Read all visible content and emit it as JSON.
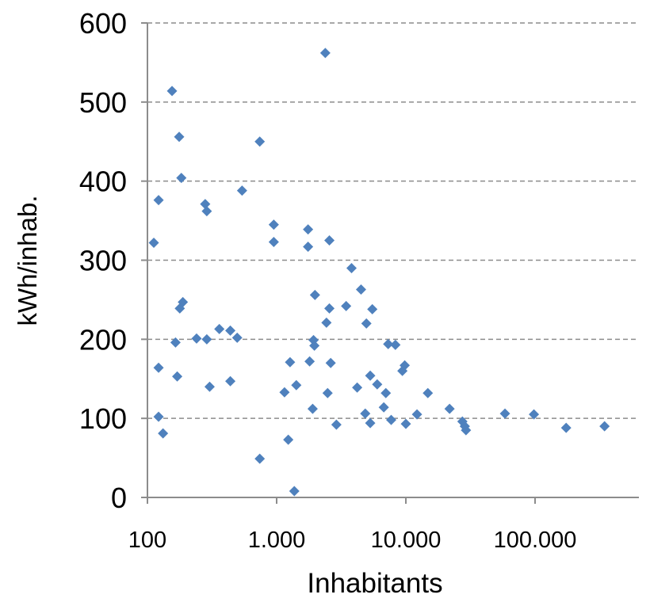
{
  "chart_data": {
    "type": "scatter",
    "title": "",
    "xlabel": "Inhabitants",
    "ylabel": "kWh/inhab.",
    "x_scale": "log",
    "xlim": [
      100,
      700000
    ],
    "ylim": [
      0,
      600
    ],
    "x_ticks": [
      {
        "value": 100,
        "label": "100"
      },
      {
        "value": 1000,
        "label": "1.000"
      },
      {
        "value": 10000,
        "label": "10.000"
      },
      {
        "value": 100000,
        "label": "100.000"
      }
    ],
    "y_ticks": [
      {
        "value": 0,
        "label": "0"
      },
      {
        "value": 100,
        "label": "100"
      },
      {
        "value": 200,
        "label": "200"
      },
      {
        "value": 300,
        "label": "300"
      },
      {
        "value": 400,
        "label": "400"
      },
      {
        "value": 500,
        "label": "500"
      },
      {
        "value": 600,
        "label": "600"
      }
    ],
    "grid": "horizontal-dashed",
    "legend": "none",
    "colors": {
      "marker": "#4f81bd",
      "grid": "#8c8c8c",
      "axis": "#8c8c8c",
      "text": "#000000"
    },
    "series": [
      {
        "points": [
          [
            112,
            322
          ],
          [
            122,
            376
          ],
          [
            122,
            164
          ],
          [
            122,
            102
          ],
          [
            132,
            81
          ],
          [
            155,
            514
          ],
          [
            165,
            196
          ],
          [
            170,
            153
          ],
          [
            176,
            456
          ],
          [
            178,
            239
          ],
          [
            183,
            404
          ],
          [
            188,
            247
          ],
          [
            240,
            201
          ],
          [
            280,
            371
          ],
          [
            288,
            362
          ],
          [
            288,
            200
          ],
          [
            303,
            140
          ],
          [
            360,
            213
          ],
          [
            438,
            211
          ],
          [
            438,
            147
          ],
          [
            495,
            202
          ],
          [
            540,
            388
          ],
          [
            740,
            450
          ],
          [
            740,
            49
          ],
          [
            950,
            345
          ],
          [
            950,
            323
          ],
          [
            1150,
            133
          ],
          [
            1230,
            73
          ],
          [
            1270,
            171
          ],
          [
            1370,
            8
          ],
          [
            1420,
            142
          ],
          [
            1750,
            339
          ],
          [
            1750,
            317
          ],
          [
            1800,
            172
          ],
          [
            1900,
            112
          ],
          [
            1930,
            199
          ],
          [
            1960,
            192
          ],
          [
            1980,
            256
          ],
          [
            2380,
            562
          ],
          [
            2430,
            221
          ],
          [
            2480,
            132
          ],
          [
            2560,
            325
          ],
          [
            2560,
            239
          ],
          [
            2620,
            170
          ],
          [
            2900,
            92
          ],
          [
            3450,
            242
          ],
          [
            3800,
            290
          ],
          [
            4200,
            139
          ],
          [
            4500,
            263
          ],
          [
            4850,
            106
          ],
          [
            4950,
            220
          ],
          [
            5300,
            154
          ],
          [
            5300,
            94
          ],
          [
            5500,
            238
          ],
          [
            6000,
            143
          ],
          [
            6750,
            114
          ],
          [
            7000,
            132
          ],
          [
            7300,
            194
          ],
          [
            7700,
            98
          ],
          [
            8300,
            193
          ],
          [
            9400,
            160
          ],
          [
            9800,
            167
          ],
          [
            10000,
            93
          ],
          [
            12200,
            105
          ],
          [
            14800,
            132
          ],
          [
            21800,
            112
          ],
          [
            27400,
            96
          ],
          [
            28600,
            90
          ],
          [
            29200,
            85
          ],
          [
            58500,
            106
          ],
          [
            98000,
            105
          ],
          [
            174000,
            88
          ],
          [
            345000,
            90
          ]
        ]
      }
    ]
  }
}
